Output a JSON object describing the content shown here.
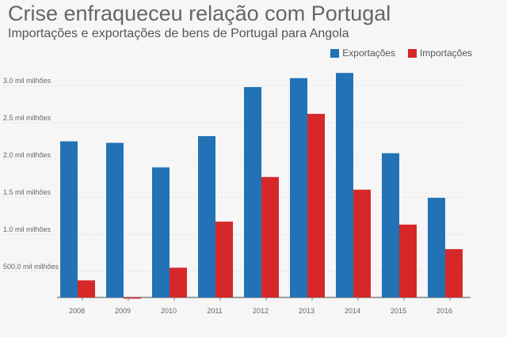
{
  "title": "Crise enfraqueceu relação com Portugal",
  "subtitle": "Importações e exportações de bens de Portugal para Angola",
  "chart_data": {
    "type": "bar",
    "categories": [
      "2008",
      "2009",
      "2010",
      "2011",
      "2012",
      "2013",
      "2014",
      "2015",
      "2016"
    ],
    "series": [
      {
        "name": "Exportações",
        "color": "#2272b5",
        "values": [
          2250,
          2230,
          1900,
          2320,
          2980,
          3100,
          3170,
          2090,
          1490
        ]
      },
      {
        "name": "Importações",
        "color": "#d62828",
        "values": [
          380,
          10,
          550,
          1170,
          1770,
          2620,
          1600,
          1130,
          800
        ]
      }
    ],
    "yticks": [
      {
        "value": 500,
        "label": "500.0 mil milhões"
      },
      {
        "value": 1000,
        "label": "1.0 mil milhões"
      },
      {
        "value": 1500,
        "label": "1.5 mil milhões"
      },
      {
        "value": 2000,
        "label": "2.0 mil milhões"
      },
      {
        "value": 2500,
        "label": "2.5 mil milhões"
      },
      {
        "value": 3000,
        "label": "3.0 mil milhões"
      }
    ],
    "ylim": [
      150,
      3300
    ],
    "grid": true,
    "legend_position": "top-right"
  }
}
